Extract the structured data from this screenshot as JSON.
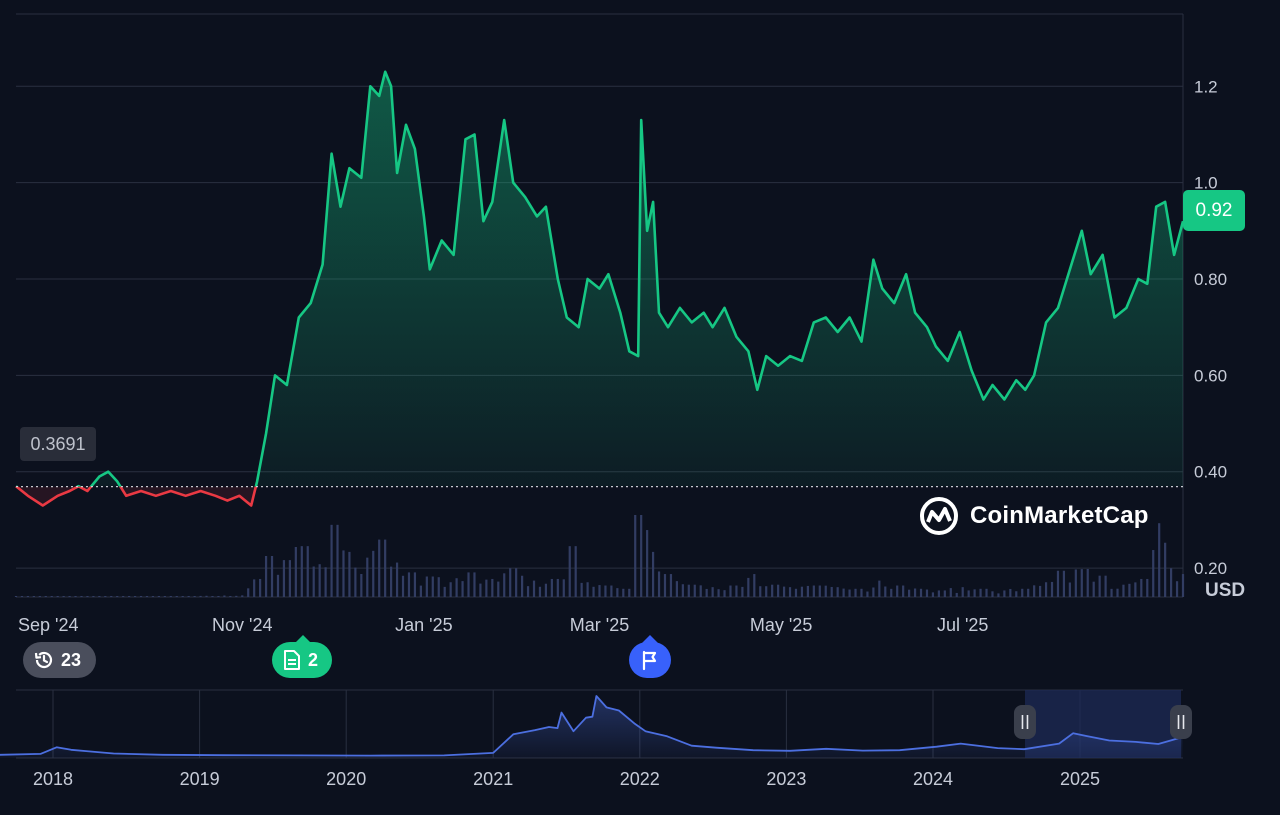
{
  "currency": "USD",
  "current_price": "0.92",
  "reference_price": "0.3691",
  "watermark": "CoinMarketCap",
  "colors": {
    "up": "#16c784",
    "down": "#ea3943",
    "volume": "#323d63",
    "navigator_line": "#4c6fe0",
    "background": "#0c111e",
    "grid": "#2a3040"
  },
  "events": {
    "history": {
      "icon": "history-icon",
      "count": "23"
    },
    "news": {
      "icon": "document-icon",
      "count": "2"
    },
    "milestone": {
      "icon": "flag-icon"
    }
  },
  "chart_data": {
    "type": "area",
    "ylabel": "USD",
    "ylim": [
      0.14,
      1.35
    ],
    "yticks": [
      "0.20",
      "0.40",
      "0.60",
      "0.80",
      "1.0",
      "1.2"
    ],
    "xticks": [
      "Sep '24",
      "Nov '24",
      "Jan '25",
      "Mar '25",
      "May '25",
      "Jul '25"
    ],
    "reference_value": 0.3691,
    "last_value": 0.92,
    "price_series": [
      [
        "2024-08-17",
        0.37
      ],
      [
        "2024-08-21",
        0.35
      ],
      [
        "2024-08-26",
        0.33
      ],
      [
        "2024-08-31",
        0.35
      ],
      [
        "2024-09-04",
        0.36
      ],
      [
        "2024-09-07",
        0.37
      ],
      [
        "2024-09-10",
        0.36
      ],
      [
        "2024-09-14",
        0.39
      ],
      [
        "2024-09-17",
        0.4
      ],
      [
        "2024-09-20",
        0.38
      ],
      [
        "2024-09-23",
        0.35
      ],
      [
        "2024-09-28",
        0.36
      ],
      [
        "2024-10-03",
        0.35
      ],
      [
        "2024-10-08",
        0.36
      ],
      [
        "2024-10-13",
        0.35
      ],
      [
        "2024-10-18",
        0.36
      ],
      [
        "2024-10-23",
        0.35
      ],
      [
        "2024-10-27",
        0.34
      ],
      [
        "2024-10-31",
        0.35
      ],
      [
        "2024-11-04",
        0.33
      ],
      [
        "2024-11-06",
        0.38
      ],
      [
        "2024-11-09",
        0.48
      ],
      [
        "2024-11-12",
        0.6
      ],
      [
        "2024-11-16",
        0.58
      ],
      [
        "2024-11-20",
        0.72
      ],
      [
        "2024-11-24",
        0.75
      ],
      [
        "2024-11-28",
        0.83
      ],
      [
        "2024-12-01",
        1.06
      ],
      [
        "2024-12-04",
        0.95
      ],
      [
        "2024-12-07",
        1.03
      ],
      [
        "2024-12-11",
        1.01
      ],
      [
        "2024-12-14",
        1.2
      ],
      [
        "2024-12-17",
        1.18
      ],
      [
        "2024-12-19",
        1.23
      ],
      [
        "2024-12-21",
        1.2
      ],
      [
        "2024-12-23",
        1.02
      ],
      [
        "2024-12-26",
        1.12
      ],
      [
        "2024-12-29",
        1.07
      ],
      [
        "2025-01-01",
        0.93
      ],
      [
        "2025-01-03",
        0.82
      ],
      [
        "2025-01-07",
        0.88
      ],
      [
        "2025-01-11",
        0.85
      ],
      [
        "2025-01-15",
        1.09
      ],
      [
        "2025-01-18",
        1.1
      ],
      [
        "2025-01-21",
        0.92
      ],
      [
        "2025-01-24",
        0.96
      ],
      [
        "2025-01-28",
        1.13
      ],
      [
        "2025-01-31",
        1.0
      ],
      [
        "2025-02-04",
        0.97
      ],
      [
        "2025-02-08",
        0.93
      ],
      [
        "2025-02-11",
        0.95
      ],
      [
        "2025-02-15",
        0.8
      ],
      [
        "2025-02-18",
        0.72
      ],
      [
        "2025-02-22",
        0.7
      ],
      [
        "2025-02-25",
        0.8
      ],
      [
        "2025-03-01",
        0.78
      ],
      [
        "2025-03-04",
        0.81
      ],
      [
        "2025-03-08",
        0.73
      ],
      [
        "2025-03-11",
        0.65
      ],
      [
        "2025-03-14",
        0.64
      ],
      [
        "2025-03-15",
        1.13
      ],
      [
        "2025-03-17",
        0.9
      ],
      [
        "2025-03-19",
        0.96
      ],
      [
        "2025-03-21",
        0.73
      ],
      [
        "2025-03-24",
        0.7
      ],
      [
        "2025-03-28",
        0.74
      ],
      [
        "2025-04-01",
        0.71
      ],
      [
        "2025-04-05",
        0.73
      ],
      [
        "2025-04-08",
        0.7
      ],
      [
        "2025-04-12",
        0.74
      ],
      [
        "2025-04-16",
        0.68
      ],
      [
        "2025-04-20",
        0.65
      ],
      [
        "2025-04-23",
        0.57
      ],
      [
        "2025-04-26",
        0.64
      ],
      [
        "2025-04-30",
        0.62
      ],
      [
        "2025-05-04",
        0.64
      ],
      [
        "2025-05-08",
        0.63
      ],
      [
        "2025-05-12",
        0.71
      ],
      [
        "2025-05-16",
        0.72
      ],
      [
        "2025-05-20",
        0.69
      ],
      [
        "2025-05-24",
        0.72
      ],
      [
        "2025-05-28",
        0.67
      ],
      [
        "2025-06-01",
        0.84
      ],
      [
        "2025-06-04",
        0.78
      ],
      [
        "2025-06-08",
        0.75
      ],
      [
        "2025-06-12",
        0.81
      ],
      [
        "2025-06-15",
        0.73
      ],
      [
        "2025-06-19",
        0.7
      ],
      [
        "2025-06-22",
        0.66
      ],
      [
        "2025-06-26",
        0.63
      ],
      [
        "2025-06-30",
        0.69
      ],
      [
        "2025-07-04",
        0.61
      ],
      [
        "2025-07-08",
        0.55
      ],
      [
        "2025-07-11",
        0.58
      ],
      [
        "2025-07-15",
        0.55
      ],
      [
        "2025-07-19",
        0.59
      ],
      [
        "2025-07-22",
        0.57
      ],
      [
        "2025-07-25",
        0.6
      ],
      [
        "2025-07-29",
        0.71
      ],
      [
        "2025-08-02",
        0.74
      ],
      [
        "2025-08-06",
        0.82
      ],
      [
        "2025-08-10",
        0.9
      ],
      [
        "2025-08-13",
        0.81
      ],
      [
        "2025-08-17",
        0.85
      ],
      [
        "2025-08-21",
        0.72
      ],
      [
        "2025-08-25",
        0.74
      ],
      [
        "2025-08-29",
        0.8
      ],
      [
        "2025-09-01",
        0.79
      ],
      [
        "2025-09-04",
        0.95
      ],
      [
        "2025-09-07",
        0.96
      ],
      [
        "2025-09-10",
        0.85
      ],
      [
        "2025-09-13",
        0.92
      ]
    ],
    "volume_series": [
      [
        "2024-08-17",
        1
      ],
      [
        "2024-09-01",
        1
      ],
      [
        "2024-09-15",
        1
      ],
      [
        "2024-10-01",
        1
      ],
      [
        "2024-10-15",
        1
      ],
      [
        "2024-11-01",
        2
      ],
      [
        "2024-11-10",
        50
      ],
      [
        "2024-11-16",
        45
      ],
      [
        "2024-11-22",
        62
      ],
      [
        "2024-11-27",
        40
      ],
      [
        "2024-12-02",
        88
      ],
      [
        "2024-12-07",
        55
      ],
      [
        "2024-12-13",
        48
      ],
      [
        "2024-12-18",
        70
      ],
      [
        "2024-12-23",
        42
      ],
      [
        "2024-12-28",
        30
      ],
      [
        "2025-01-03",
        25
      ],
      [
        "2025-01-10",
        18
      ],
      [
        "2025-01-17",
        30
      ],
      [
        "2025-01-24",
        22
      ],
      [
        "2025-01-31",
        35
      ],
      [
        "2025-02-07",
        20
      ],
      [
        "2025-02-14",
        22
      ],
      [
        "2025-02-20",
        62
      ],
      [
        "2025-02-25",
        18
      ],
      [
        "2025-03-04",
        14
      ],
      [
        "2025-03-10",
        10
      ],
      [
        "2025-03-14",
        100
      ],
      [
        "2025-03-19",
        55
      ],
      [
        "2025-03-25",
        28
      ],
      [
        "2025-04-01",
        15
      ],
      [
        "2025-04-08",
        12
      ],
      [
        "2025-04-15",
        14
      ],
      [
        "2025-04-22",
        28
      ],
      [
        "2025-04-29",
        15
      ],
      [
        "2025-05-06",
        10
      ],
      [
        "2025-05-13",
        14
      ],
      [
        "2025-05-20",
        12
      ],
      [
        "2025-05-27",
        10
      ],
      [
        "2025-06-03",
        20
      ],
      [
        "2025-06-10",
        14
      ],
      [
        "2025-06-17",
        10
      ],
      [
        "2025-06-24",
        8
      ],
      [
        "2025-07-01",
        12
      ],
      [
        "2025-07-08",
        10
      ],
      [
        "2025-07-15",
        8
      ],
      [
        "2025-07-22",
        10
      ],
      [
        "2025-07-29",
        18
      ],
      [
        "2025-08-03",
        32
      ],
      [
        "2025-08-10",
        34
      ],
      [
        "2025-08-17",
        26
      ],
      [
        "2025-08-24",
        15
      ],
      [
        "2025-08-31",
        22
      ],
      [
        "2025-09-05",
        90
      ],
      [
        "2025-09-09",
        35
      ],
      [
        "2025-09-13",
        28
      ]
    ],
    "navigator": {
      "xticks": [
        "2018",
        "2019",
        "2020",
        "2021",
        "2022",
        "2023",
        "2024",
        "2025"
      ],
      "series": [
        [
          "2017-08-01",
          0.05
        ],
        [
          "2017-12-01",
          0.1
        ],
        [
          "2018-01-10",
          0.42
        ],
        [
          "2018-02-15",
          0.3
        ],
        [
          "2018-04-01",
          0.22
        ],
        [
          "2018-06-01",
          0.12
        ],
        [
          "2018-10-01",
          0.06
        ],
        [
          "2019-03-01",
          0.04
        ],
        [
          "2019-09-01",
          0.03
        ],
        [
          "2020-03-01",
          0.02
        ],
        [
          "2020-09-01",
          0.03
        ],
        [
          "2021-01-01",
          0.15
        ],
        [
          "2021-02-20",
          1.05
        ],
        [
          "2021-04-15",
          1.25
        ],
        [
          "2021-05-20",
          1.4
        ],
        [
          "2021-06-10",
          1.35
        ],
        [
          "2021-06-20",
          2.1
        ],
        [
          "2021-07-20",
          1.2
        ],
        [
          "2021-08-20",
          1.85
        ],
        [
          "2021-09-05",
          1.9
        ],
        [
          "2021-09-15",
          2.9
        ],
        [
          "2021-10-10",
          2.35
        ],
        [
          "2021-11-10",
          2.2
        ],
        [
          "2021-12-20",
          1.55
        ],
        [
          "2022-01-15",
          1.2
        ],
        [
          "2022-03-10",
          0.95
        ],
        [
          "2022-05-10",
          0.5
        ],
        [
          "2022-07-10",
          0.4
        ],
        [
          "2022-10-10",
          0.28
        ],
        [
          "2023-01-10",
          0.25
        ],
        [
          "2023-04-10",
          0.35
        ],
        [
          "2023-07-10",
          0.26
        ],
        [
          "2023-10-10",
          0.28
        ],
        [
          "2024-01-10",
          0.45
        ],
        [
          "2024-03-10",
          0.6
        ],
        [
          "2024-06-10",
          0.38
        ],
        [
          "2024-08-15",
          0.33
        ],
        [
          "2024-11-10",
          0.6
        ],
        [
          "2024-12-15",
          1.1
        ],
        [
          "2025-01-20",
          0.95
        ],
        [
          "2025-03-15",
          0.75
        ],
        [
          "2025-05-20",
          0.68
        ],
        [
          "2025-07-15",
          0.58
        ],
        [
          "2025-08-20",
          0.78
        ],
        [
          "2025-09-13",
          0.92
        ]
      ],
      "selection": [
        "2024-08-17",
        "2025-09-13"
      ]
    }
  }
}
